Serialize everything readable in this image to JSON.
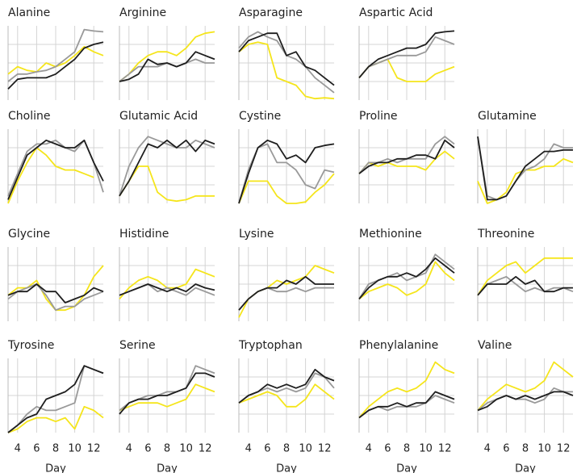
{
  "chart_data": {
    "type": "line",
    "x": [
      3,
      4,
      5,
      6,
      7,
      8,
      9,
      10,
      11,
      12,
      13
    ],
    "xlim": [
      3,
      13
    ],
    "xticks": [
      4,
      6,
      8,
      10,
      12
    ],
    "xlabel": "Day",
    "ylim": [
      0,
      1
    ],
    "yticks": [
      0.25,
      0.5,
      0.75
    ],
    "grid": true,
    "panels": [
      {
        "title": "Alanine",
        "series": [
          {
            "color": "#f5e51b",
            "values": [
              0.35,
              0.45,
              0.4,
              0.38,
              0.5,
              0.45,
              0.5,
              0.6,
              0.72,
              0.65,
              0.6
            ]
          },
          {
            "color": "#999999",
            "values": [
              0.25,
              0.35,
              0.35,
              0.38,
              0.4,
              0.45,
              0.55,
              0.65,
              0.95,
              0.93,
              0.92
            ]
          },
          {
            "color": "#1e1e1e",
            "values": [
              0.15,
              0.28,
              0.3,
              0.3,
              0.3,
              0.35,
              0.45,
              0.55,
              0.7,
              0.75,
              0.78
            ]
          }
        ]
      },
      {
        "title": "Arginine",
        "series": [
          {
            "color": "#f5e51b",
            "values": [
              0.25,
              0.35,
              0.5,
              0.6,
              0.65,
              0.65,
              0.6,
              0.7,
              0.85,
              0.9,
              0.92
            ]
          },
          {
            "color": "#999999",
            "values": [
              0.25,
              0.35,
              0.45,
              0.45,
              0.45,
              0.5,
              0.45,
              0.5,
              0.55,
              0.5,
              0.5
            ]
          },
          {
            "color": "#1e1e1e",
            "values": [
              0.25,
              0.28,
              0.35,
              0.55,
              0.48,
              0.5,
              0.45,
              0.5,
              0.65,
              0.6,
              0.55
            ]
          }
        ]
      },
      {
        "title": "Asparagine",
        "series": [
          {
            "color": "#f5e51b",
            "values": [
              0.65,
              0.75,
              0.78,
              0.75,
              0.3,
              0.25,
              0.2,
              0.05,
              0.02,
              0.03,
              0.02
            ]
          },
          {
            "color": "#999999",
            "values": [
              0.7,
              0.85,
              0.92,
              0.85,
              0.8,
              0.6,
              0.55,
              0.45,
              0.3,
              0.2,
              0.1
            ]
          },
          {
            "color": "#1e1e1e",
            "values": [
              0.65,
              0.8,
              0.85,
              0.9,
              0.9,
              0.6,
              0.65,
              0.45,
              0.4,
              0.3,
              0.2
            ]
          }
        ]
      },
      {
        "title": "Aspartic Acid",
        "series": [
          {
            "color": "#f5e51b",
            "values": [
              0.3,
              0.45,
              0.5,
              0.55,
              0.3,
              0.25,
              0.25,
              0.25,
              0.35,
              0.4,
              0.45
            ]
          },
          {
            "color": "#999999",
            "values": [
              0.3,
              0.45,
              0.5,
              0.55,
              0.6,
              0.6,
              0.6,
              0.65,
              0.85,
              0.8,
              0.75
            ]
          },
          {
            "color": "#1e1e1e",
            "values": [
              0.3,
              0.45,
              0.55,
              0.6,
              0.65,
              0.7,
              0.7,
              0.75,
              0.9,
              0.92,
              0.93
            ]
          }
        ]
      },
      {
        "title": "Choline",
        "series": [
          {
            "color": "#f5e51b",
            "values": [
              0.0,
              0.3,
              0.55,
              0.75,
              0.65,
              0.5,
              0.45,
              0.45,
              0.4,
              0.35,
              null
            ]
          },
          {
            "color": "#999999",
            "values": [
              0.1,
              0.4,
              0.7,
              0.8,
              0.8,
              0.85,
              0.75,
              0.7,
              0.85,
              0.55,
              0.15
            ]
          },
          {
            "color": "#1e1e1e",
            "values": [
              0.05,
              0.35,
              0.65,
              0.75,
              0.85,
              0.8,
              0.75,
              0.75,
              0.85,
              0.55,
              0.3
            ]
          }
        ]
      },
      {
        "title": "Glutamic Acid",
        "series": [
          {
            "color": "#f5e51b",
            "values": [
              0.1,
              0.3,
              0.5,
              0.5,
              0.15,
              0.05,
              0.03,
              0.05,
              0.1,
              0.1,
              0.1
            ]
          },
          {
            "color": "#999999",
            "values": [
              0.1,
              0.5,
              0.75,
              0.9,
              0.85,
              0.8,
              0.75,
              0.75,
              0.85,
              0.8,
              0.75
            ]
          },
          {
            "color": "#1e1e1e",
            "values": [
              0.1,
              0.3,
              0.55,
              0.8,
              0.75,
              0.85,
              0.75,
              0.85,
              0.7,
              0.85,
              0.8
            ]
          }
        ]
      },
      {
        "title": "Cystine",
        "series": [
          {
            "color": "#f5e51b",
            "values": [
              0.0,
              0.3,
              0.3,
              0.3,
              0.1,
              0.0,
              0.0,
              0.02,
              0.15,
              0.25,
              0.4
            ]
          },
          {
            "color": "#999999",
            "values": [
              0.0,
              0.45,
              0.75,
              0.8,
              0.55,
              0.55,
              0.45,
              0.25,
              0.2,
              0.45,
              0.42
            ]
          },
          {
            "color": "#1e1e1e",
            "values": [
              0.0,
              0.4,
              0.75,
              0.85,
              0.8,
              0.6,
              0.65,
              0.55,
              0.75,
              0.78,
              0.8
            ]
          }
        ]
      },
      {
        "title": "Proline",
        "series": [
          {
            "color": "#f5e51b",
            "values": [
              0.4,
              0.55,
              0.5,
              0.55,
              0.5,
              0.5,
              0.5,
              0.45,
              0.6,
              0.7,
              0.6
            ]
          },
          {
            "color": "#999999",
            "values": [
              0.4,
              0.55,
              0.55,
              0.6,
              0.55,
              0.6,
              0.6,
              0.6,
              0.8,
              0.9,
              0.8
            ]
          },
          {
            "color": "#1e1e1e",
            "values": [
              0.4,
              0.5,
              0.55,
              0.55,
              0.6,
              0.6,
              0.65,
              0.65,
              0.6,
              0.85,
              0.75
            ]
          }
        ]
      },
      {
        "title": "Glutamine",
        "series": [
          {
            "color": "#f5e51b",
            "values": [
              0.3,
              0.0,
              0.05,
              0.15,
              0.4,
              0.45,
              0.45,
              0.5,
              0.5,
              0.6,
              0.55
            ]
          },
          {
            "color": "#999999",
            "values": [
              0.9,
              0.1,
              0.05,
              0.1,
              0.3,
              0.45,
              0.5,
              0.6,
              0.8,
              0.75,
              0.75
            ]
          },
          {
            "color": "#1e1e1e",
            "values": [
              0.9,
              0.05,
              0.05,
              0.1,
              0.3,
              0.5,
              0.6,
              0.7,
              0.7,
              0.72,
              0.72
            ]
          }
        ]
      },
      {
        "title": "Glycine",
        "series": [
          {
            "color": "#f5e51b",
            "values": [
              0.35,
              0.45,
              0.45,
              0.55,
              0.3,
              0.15,
              0.15,
              0.2,
              0.35,
              0.6,
              0.75
            ]
          },
          {
            "color": "#999999",
            "values": [
              0.3,
              0.4,
              0.45,
              0.5,
              0.35,
              0.15,
              0.2,
              0.2,
              0.3,
              0.35,
              0.4
            ]
          },
          {
            "color": "#1e1e1e",
            "values": [
              0.35,
              0.4,
              0.4,
              0.5,
              0.4,
              0.4,
              0.25,
              0.3,
              0.35,
              0.45,
              0.4
            ]
          }
        ]
      },
      {
        "title": "Histidine",
        "series": [
          {
            "color": "#f5e51b",
            "values": [
              0.3,
              0.45,
              0.55,
              0.6,
              0.55,
              0.45,
              0.45,
              0.5,
              0.7,
              0.65,
              0.6
            ]
          },
          {
            "color": "#999999",
            "values": [
              0.35,
              0.4,
              0.45,
              0.5,
              0.4,
              0.45,
              0.4,
              0.35,
              0.45,
              0.4,
              0.35
            ]
          },
          {
            "color": "#1e1e1e",
            "values": [
              0.35,
              0.4,
              0.45,
              0.5,
              0.45,
              0.4,
              0.45,
              0.4,
              0.5,
              0.45,
              0.42
            ]
          }
        ]
      },
      {
        "title": "Lysine",
        "series": [
          {
            "color": "#f5e51b",
            "values": [
              0.05,
              0.3,
              0.4,
              0.45,
              0.55,
              0.5,
              0.55,
              0.6,
              0.75,
              0.7,
              0.65
            ]
          },
          {
            "color": "#999999",
            "values": [
              0.15,
              0.3,
              0.4,
              0.45,
              0.4,
              0.4,
              0.45,
              0.4,
              0.45,
              0.45,
              0.45
            ]
          },
          {
            "color": "#1e1e1e",
            "values": [
              0.15,
              0.3,
              0.4,
              0.45,
              0.45,
              0.55,
              0.5,
              0.6,
              0.5,
              0.5,
              0.5
            ]
          }
        ]
      },
      {
        "title": "Methionine",
        "series": [
          {
            "color": "#f5e51b",
            "values": [
              0.3,
              0.4,
              0.45,
              0.5,
              0.45,
              0.35,
              0.4,
              0.5,
              0.8,
              0.65,
              0.55
            ]
          },
          {
            "color": "#999999",
            "values": [
              0.3,
              0.5,
              0.55,
              0.6,
              0.65,
              0.55,
              0.6,
              0.65,
              0.9,
              0.8,
              0.7
            ]
          },
          {
            "color": "#1e1e1e",
            "values": [
              0.3,
              0.45,
              0.55,
              0.6,
              0.6,
              0.65,
              0.6,
              0.7,
              0.85,
              0.75,
              0.65
            ]
          }
        ]
      },
      {
        "title": "Threonine",
        "series": [
          {
            "color": "#f5e51b",
            "values": [
              0.35,
              0.55,
              0.65,
              0.75,
              0.8,
              0.65,
              0.75,
              0.85,
              0.85,
              0.85,
              0.85
            ]
          },
          {
            "color": "#999999",
            "values": [
              0.35,
              0.5,
              0.55,
              0.6,
              0.5,
              0.4,
              0.45,
              0.4,
              0.45,
              0.45,
              0.4
            ]
          },
          {
            "color": "#1e1e1e",
            "values": [
              0.35,
              0.5,
              0.5,
              0.5,
              0.6,
              0.5,
              0.55,
              0.4,
              0.4,
              0.45,
              0.45
            ]
          }
        ]
      },
      {
        "title": "Tyrosine",
        "series": [
          {
            "color": "#f5e51b",
            "values": [
              0.0,
              0.05,
              0.15,
              0.2,
              0.2,
              0.15,
              0.2,
              0.05,
              0.35,
              0.3,
              0.2
            ]
          },
          {
            "color": "#999999",
            "values": [
              0.0,
              0.1,
              0.25,
              0.35,
              0.3,
              0.3,
              0.35,
              0.4,
              0.9,
              0.85,
              0.8
            ]
          },
          {
            "color": "#1e1e1e",
            "values": [
              0.0,
              0.1,
              0.2,
              0.25,
              0.45,
              0.5,
              0.55,
              0.65,
              0.9,
              0.85,
              0.8
            ]
          }
        ]
      },
      {
        "title": "Serine",
        "series": [
          {
            "color": "#f5e51b",
            "values": [
              0.3,
              0.35,
              0.4,
              0.4,
              0.4,
              0.35,
              0.4,
              0.45,
              0.65,
              0.6,
              0.55
            ]
          },
          {
            "color": "#999999",
            "values": [
              0.3,
              0.4,
              0.45,
              0.5,
              0.5,
              0.55,
              0.55,
              0.6,
              0.9,
              0.85,
              0.8
            ]
          },
          {
            "color": "#1e1e1e",
            "values": [
              0.25,
              0.4,
              0.45,
              0.45,
              0.5,
              0.5,
              0.55,
              0.6,
              0.8,
              0.8,
              0.75
            ]
          }
        ]
      },
      {
        "title": "Tryptophan",
        "series": [
          {
            "color": "#f5e51b",
            "values": [
              0.4,
              0.45,
              0.5,
              0.55,
              0.5,
              0.35,
              0.35,
              0.45,
              0.65,
              0.55,
              0.45
            ]
          },
          {
            "color": "#999999",
            "values": [
              0.4,
              0.5,
              0.55,
              0.6,
              0.55,
              0.6,
              0.55,
              0.6,
              0.8,
              0.75,
              0.6
            ]
          },
          {
            "color": "#1e1e1e",
            "values": [
              0.4,
              0.5,
              0.55,
              0.65,
              0.6,
              0.65,
              0.6,
              0.65,
              0.85,
              0.75,
              0.7
            ]
          }
        ]
      },
      {
        "title": "Phenylalanine",
        "series": [
          {
            "color": "#f5e51b",
            "values": [
              0.2,
              0.35,
              0.45,
              0.55,
              0.6,
              0.55,
              0.6,
              0.7,
              0.95,
              0.85,
              0.8
            ]
          },
          {
            "color": "#999999",
            "values": [
              0.2,
              0.3,
              0.35,
              0.3,
              0.35,
              0.35,
              0.35,
              0.4,
              0.5,
              0.45,
              0.4
            ]
          },
          {
            "color": "#1e1e1e",
            "values": [
              0.2,
              0.3,
              0.35,
              0.35,
              0.4,
              0.35,
              0.4,
              0.4,
              0.55,
              0.5,
              0.45
            ]
          }
        ]
      },
      {
        "title": "Valine",
        "series": [
          {
            "color": "#f5e51b",
            "values": [
              0.3,
              0.45,
              0.55,
              0.65,
              0.6,
              0.55,
              0.6,
              0.7,
              0.95,
              0.85,
              0.75
            ]
          },
          {
            "color": "#999999",
            "values": [
              0.3,
              0.4,
              0.45,
              0.5,
              0.45,
              0.45,
              0.4,
              0.45,
              0.6,
              0.55,
              0.55
            ]
          },
          {
            "color": "#1e1e1e",
            "values": [
              0.3,
              0.35,
              0.45,
              0.5,
              0.45,
              0.5,
              0.45,
              0.5,
              0.55,
              0.55,
              0.5
            ]
          }
        ]
      }
    ]
  }
}
